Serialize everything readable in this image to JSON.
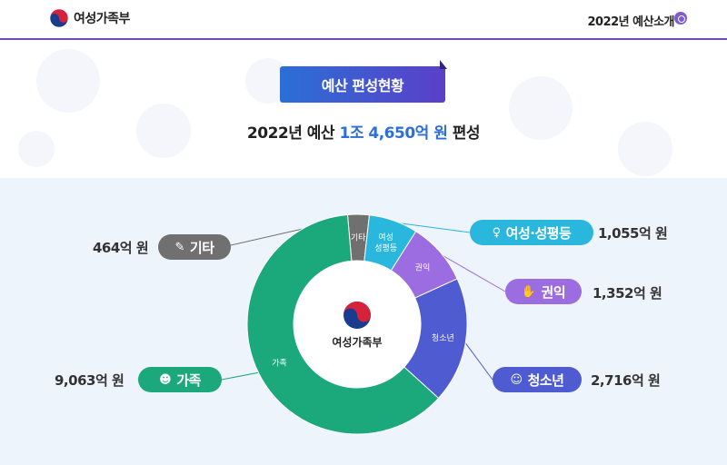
{
  "header": {
    "logo_text": "여성가족부",
    "right_title": "2022년 예산소개"
  },
  "badge": {
    "label": "예산 편성현황"
  },
  "subtitle": {
    "prefix": "2022년 예산 ",
    "highlight": "1조 4,650억 원",
    "suffix": " 편성"
  },
  "center_logo_text": "여성가족부",
  "colors": {
    "family": "#1ba87b",
    "women": "#2ab7dd",
    "rights": "#9b6de0",
    "youth": "#4e5bd1",
    "etc": "#707070"
  },
  "chart_data": {
    "type": "pie",
    "donut": true,
    "unit": "억 원",
    "slices": [
      {
        "key": "etc",
        "label": "기타",
        "inner_label": "기타",
        "value": 464,
        "amount_text": "464억 원"
      },
      {
        "key": "women",
        "label": "여성·성평등",
        "inner_label": "여성 성평등",
        "value": 1055,
        "amount_text": "1,055억 원"
      },
      {
        "key": "rights",
        "label": "권익",
        "inner_label": "권익",
        "value": 1352,
        "amount_text": "1,352억 원"
      },
      {
        "key": "youth",
        "label": "청소년",
        "inner_label": "청소년",
        "value": 2716,
        "amount_text": "2,716억 원"
      },
      {
        "key": "family",
        "label": "가족",
        "inner_label": "가족",
        "value": 9063,
        "amount_text": "9,063억 원"
      }
    ]
  }
}
